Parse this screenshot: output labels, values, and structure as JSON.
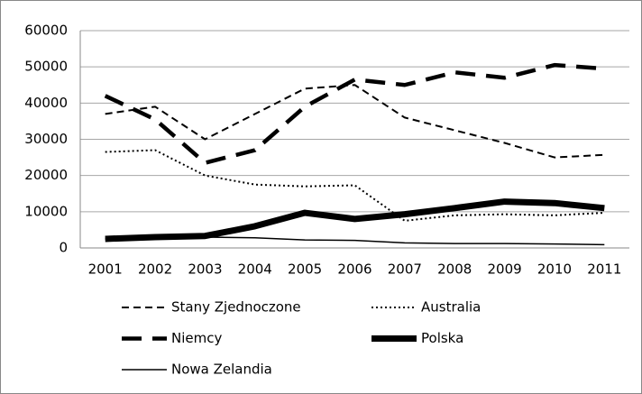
{
  "chart_data": {
    "type": "line",
    "categories": [
      "2001",
      "2002",
      "2003",
      "2004",
      "2005",
      "2006",
      "2007",
      "2008",
      "2009",
      "2010",
      "2011"
    ],
    "series": [
      {
        "name": "Stany Zjednoczone",
        "color": "#000000",
        "line_style": "dashed",
        "values": [
          37000,
          39000,
          30000,
          37000,
          44000,
          45000,
          36000,
          32500,
          29000,
          25000,
          25700
        ]
      },
      {
        "name": "Australia",
        "color": "#000000",
        "line_style": "dotted",
        "values": [
          26500,
          27000,
          20000,
          17500,
          17000,
          17300,
          7500,
          9000,
          9300,
          9000,
          9700
        ]
      },
      {
        "name": "Niemcy",
        "color": "#000000",
        "line_style": "long-dashed",
        "values": [
          42000,
          35500,
          23500,
          27000,
          39000,
          46500,
          45000,
          48500,
          47000,
          50500,
          49500
        ]
      },
      {
        "name": "Polska",
        "color": "#000000",
        "line_style": "thick",
        "values": [
          2500,
          3000,
          3300,
          6000,
          9700,
          8000,
          9300,
          11000,
          12800,
          12400,
          11000
        ]
      },
      {
        "name": "Nowa Zelandia",
        "color": "#000000",
        "line_style": "solid",
        "values": [
          2500,
          2800,
          3000,
          2800,
          2200,
          2100,
          1400,
          1200,
          1200,
          1100,
          900
        ]
      }
    ],
    "ylim": [
      0,
      60000
    ],
    "yticks": [
      0,
      10000,
      20000,
      30000,
      40000,
      50000,
      60000
    ],
    "grid": true,
    "legend": "bottom"
  }
}
